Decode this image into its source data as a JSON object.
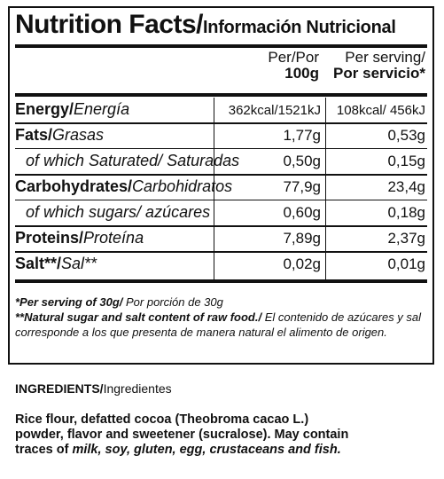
{
  "title": {
    "en": "Nutrition Facts/",
    "es": "Información Nutricional"
  },
  "columns": {
    "per100_line1": "Per/Por",
    "per100_line2": "100g",
    "serving_line1": "Per serving/",
    "serving_line2": "Por servicio*"
  },
  "rows": [
    {
      "en": "Energy/",
      "es": "Energía",
      "v100": "362kcal/1521kJ",
      "vserv": "108kcal/ 456kJ"
    },
    {
      "en": "Fats/",
      "es": "Grasas",
      "v100": "1,77g",
      "vserv": "0,53g"
    },
    {
      "sub": "of which Saturated/ Saturadas",
      "v100": "0,50g",
      "vserv": "0,15g"
    },
    {
      "en": "Carbohydrates/",
      "es": "Carbohidratos",
      "v100": "77,9g",
      "vserv": "23,4g"
    },
    {
      "sub": "of which sugars/ azúcares",
      "v100": "0,60g",
      "vserv": "0,18g"
    },
    {
      "en": "Proteins/",
      "es": "Proteína",
      "v100": "7,89g",
      "vserv": "2,37g"
    },
    {
      "en": "Salt**/",
      "es": "Sal**",
      "v100": "0,02g",
      "vserv": "0,01g"
    }
  ],
  "notes": {
    "serving_bold": "*Per serving of 30g/",
    "serving_rest": " Por porción de 30g",
    "natural_bold": "**Natural sugar and salt content of raw food./",
    "natural_rest": " El contenido de azúcares y sal corresponde a los que presenta de manera natural el alimento de origen."
  },
  "ingredients": {
    "heading_bold": "INGREDIENTS/",
    "heading_rest": "Ingredientes",
    "text": "Rice flour, defatted cocoa (Theobroma cacao L.) powder, flavor and sweetener (sucralose). May contain traces of ",
    "allergens": "milk, soy, gluten, egg, crustaceans and fish."
  }
}
